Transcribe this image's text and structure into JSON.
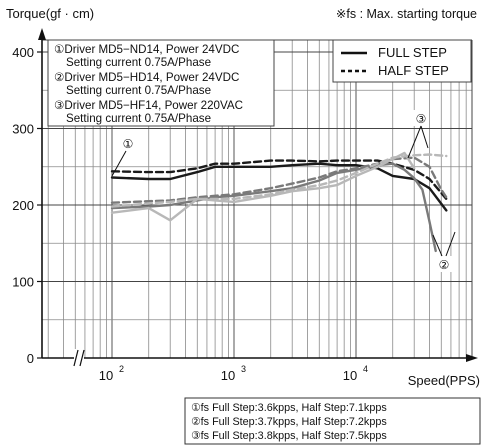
{
  "chart_data": {
    "type": "line",
    "xlabel": "Speed(PPS)",
    "ylabel": "Torque(gf · cm)",
    "note": "※fs : Max. starting torque",
    "x_scale": "log",
    "xlim": [
      100,
      60000
    ],
    "ylim": [
      0,
      400
    ],
    "y_ticks": [
      "0",
      "100",
      "200",
      "300",
      "400"
    ],
    "x_ticks": [
      {
        "base": "10",
        "exp": "2",
        "value": 100
      },
      {
        "base": "10",
        "exp": "3",
        "value": 1000
      },
      {
        "base": "10",
        "exp": "4",
        "value": 10000
      }
    ],
    "grid": true,
    "legend": {
      "placement": "top-right",
      "entries": [
        {
          "label": "FULL STEP",
          "style": "solid"
        },
        {
          "label": "HALF STEP",
          "style": "dashed"
        }
      ]
    },
    "drivers": [
      {
        "marker": "①",
        "line1": "①Driver MD5−ND14, Power 24VDC",
        "line2": "Setting current 0.75A/Phase"
      },
      {
        "marker": "②",
        "line1": "②Driver MD5−HD14, Power 24VDC",
        "line2": "Setting current 0.75A/Phase"
      },
      {
        "marker": "③",
        "line1": "③Driver MD5−HF14, Power 220VAC",
        "line2": "Setting current 0.75A/Phase"
      }
    ],
    "fs_notes": [
      "①fs Full Step:3.6kpps, Half Step:7.1kpps",
      "②fs Full Step:3.7kpps, Half Step:7.2kpps",
      "③fs Full Step:3.8kpps, Half Step:7.5kpps"
    ],
    "series": [
      {
        "driver": "①",
        "step": "full",
        "color": "#1a1a1a",
        "x": [
          100,
          200,
          300,
          500,
          700,
          1000,
          2000,
          3000,
          5000,
          7000,
          10000,
          15000,
          20000,
          30000,
          40000,
          55000
        ],
        "y": [
          236,
          234,
          234,
          243,
          250,
          250,
          250,
          252,
          254,
          252,
          252,
          248,
          238,
          234,
          222,
          193
        ]
      },
      {
        "driver": "①",
        "step": "half",
        "color": "#1a1a1a",
        "x": [
          100,
          200,
          300,
          500,
          700,
          1000,
          2000,
          3000,
          5000,
          7000,
          10000,
          15000,
          20000,
          30000,
          40000,
          55000
        ],
        "y": [
          244,
          243,
          243,
          248,
          254,
          254,
          258,
          258,
          257,
          258,
          258,
          258,
          254,
          246,
          234,
          208
        ]
      },
      {
        "driver": "②",
        "step": "full",
        "color": "#7a7a7a",
        "x": [
          100,
          200,
          300,
          500,
          700,
          1000,
          2000,
          3000,
          5000,
          7000,
          10000,
          15000,
          20000,
          25000,
          30000,
          35000,
          40000,
          45000
        ],
        "y": [
          196,
          198,
          200,
          206,
          210,
          212,
          218,
          222,
          232,
          242,
          246,
          252,
          254,
          246,
          235,
          220,
          178,
          140
        ]
      },
      {
        "driver": "②",
        "step": "half",
        "color": "#7a7a7a",
        "x": [
          100,
          200,
          300,
          500,
          700,
          1000,
          2000,
          3000,
          5000,
          7000,
          10000,
          15000,
          20000,
          30000,
          40000,
          50000,
          55000
        ],
        "y": [
          203,
          205,
          206,
          210,
          212,
          214,
          222,
          228,
          236,
          244,
          248,
          254,
          260,
          262,
          250,
          220,
          210
        ]
      },
      {
        "driver": "③",
        "step": "full",
        "color": "#b8b8b8",
        "x": [
          100,
          200,
          300,
          500,
          700,
          1000,
          2000,
          3000,
          5000,
          7000,
          10000,
          15000,
          20000,
          25000,
          30000
        ],
        "y": [
          190,
          196,
          180,
          208,
          206,
          204,
          212,
          218,
          222,
          226,
          238,
          250,
          260,
          268,
          248
        ]
      },
      {
        "driver": "③",
        "step": "half",
        "color": "#b8b8b8",
        "x": [
          100,
          200,
          300,
          500,
          700,
          1000,
          2000,
          3000,
          5000,
          7000,
          10000,
          15000,
          20000,
          30000,
          40000,
          55000
        ],
        "y": [
          198,
          202,
          204,
          208,
          208,
          208,
          214,
          220,
          226,
          232,
          242,
          254,
          262,
          265,
          266,
          264
        ]
      }
    ]
  }
}
